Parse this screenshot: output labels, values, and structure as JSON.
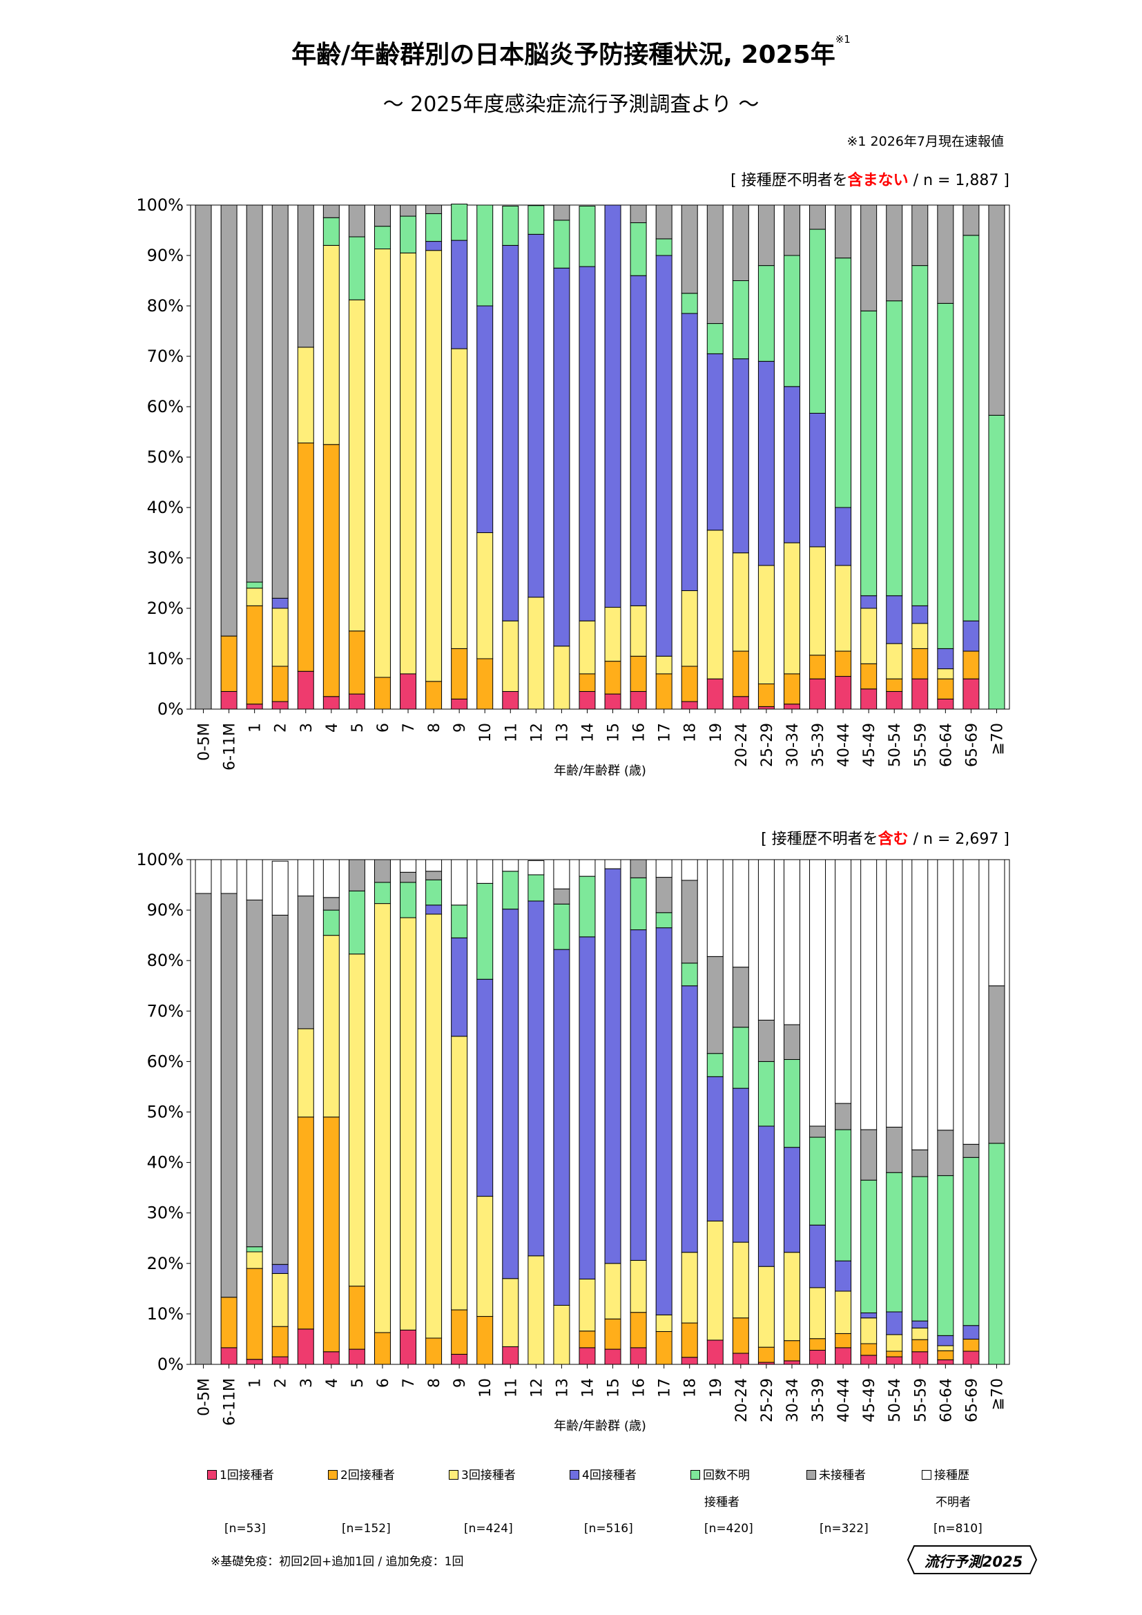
{
  "title": "年齢/年齢群別の日本脳炎予防接種状況, 2025年",
  "title_mark": "※1",
  "subtitle": "～ 2025年度感染症流行予測調査より ～",
  "footnote": "※1  2026年7月現在速報値",
  "x_axis_label": "年齢/年齢群 (歳)",
  "categories": [
    "0-5M",
    "6-11M",
    "1",
    "2",
    "3",
    "4",
    "5",
    "6",
    "7",
    "8",
    "9",
    "10",
    "11",
    "12",
    "13",
    "14",
    "15",
    "16",
    "17",
    "18",
    "19",
    "20-24",
    "25-29",
    "30-34",
    "35-39",
    "40-44",
    "45-49",
    "50-54",
    "55-59",
    "60-64",
    "65-69",
    "≧70"
  ],
  "y_ticks": [
    "0%",
    "10%",
    "20%",
    "30%",
    "40%",
    "50%",
    "60%",
    "70%",
    "80%",
    "90%",
    "100%"
  ],
  "series_colors": {
    "dose1": "#ee3b6e",
    "dose2": "#ffae1a",
    "dose3": "#ffee7a",
    "dose4": "#6f6fe0",
    "unknown_count": "#7ee89a",
    "unvaccinated": "#a6a6a6",
    "history_unknown": "#ffffff"
  },
  "chart_data": [
    {
      "type": "bar",
      "stacked": true,
      "note_prefix": "[ 接種歴不明者を",
      "note_emph": "含まない",
      "note_suffix": "/ n = 1,887 ]",
      "ylim": [
        0,
        100
      ],
      "grid": false,
      "series": [
        {
          "key": "dose1",
          "values": [
            0,
            3.5,
            1,
            1.5,
            7.5,
            2.5,
            3,
            0,
            7,
            0,
            2,
            0,
            3.5,
            0,
            0,
            3.5,
            3,
            3.5,
            0,
            1.5,
            6,
            2.5,
            0.5,
            1,
            6,
            6.5,
            4,
            3.5,
            6,
            2,
            6,
            0
          ]
        },
        {
          "key": "dose2",
          "values": [
            0,
            11,
            19.5,
            7,
            45.3,
            50,
            12.5,
            6.3,
            0,
            5.5,
            10,
            10,
            0,
            0,
            0,
            3.5,
            6.5,
            7,
            7,
            7,
            0,
            9,
            4.5,
            6,
            4.7,
            5,
            5,
            2.5,
            6,
            4,
            5.5,
            0
          ]
        },
        {
          "key": "dose3",
          "values": [
            0,
            0,
            3.5,
            11.5,
            19,
            39.5,
            65.7,
            85,
            83.5,
            85.5,
            59.5,
            25,
            14,
            22.2,
            12.5,
            10.5,
            10.7,
            10,
            3.5,
            15,
            29.5,
            19.5,
            23.5,
            26,
            21.5,
            17,
            11,
            7,
            5,
            2,
            0,
            0
          ]
        },
        {
          "key": "dose4",
          "values": [
            0,
            0,
            0,
            2,
            0,
            0,
            0,
            0,
            0,
            1.8,
            21.5,
            45,
            74.5,
            72,
            75,
            70.3,
            79.8,
            65.5,
            79.5,
            55,
            35,
            38.5,
            40.5,
            31,
            26.5,
            11.5,
            2.5,
            9.5,
            3.5,
            4,
            6,
            0
          ]
        },
        {
          "key": "unknown_count",
          "values": [
            0,
            0,
            1.2,
            0,
            0,
            5.5,
            12.5,
            4.5,
            7.3,
            5.5,
            7.2,
            20,
            7.8,
            5.7,
            9.5,
            12,
            0,
            10.5,
            3.3,
            4,
            6,
            15.5,
            19,
            26,
            36.5,
            49.5,
            56.5,
            58.5,
            67.5,
            68.5,
            76.5,
            58.3
          ]
        },
        {
          "key": "unvaccinated",
          "values": [
            100,
            85.5,
            74.8,
            78,
            28.2,
            2.5,
            6.3,
            4.2,
            2.2,
            1.7,
            0,
            0,
            0,
            0,
            3,
            0,
            0,
            3.5,
            6.7,
            17.5,
            23.5,
            15,
            12,
            10,
            4.8,
            10.5,
            21,
            19,
            12,
            19.5,
            6,
            41.7
          ]
        }
      ]
    },
    {
      "type": "bar",
      "stacked": true,
      "note_prefix": "[ 接種歴不明者を",
      "note_emph": "含む",
      "note_suffix": "/ n = 2,697 ]",
      "ylim": [
        0,
        100
      ],
      "grid": false,
      "series": [
        {
          "key": "dose1",
          "values": [
            0,
            3.3,
            1,
            1.5,
            7,
            2.5,
            3,
            0,
            6.8,
            0,
            2,
            0,
            3.5,
            0,
            0,
            3.3,
            3,
            3.3,
            0,
            1.4,
            4.8,
            2.2,
            0.4,
            0.7,
            2.8,
            3.3,
            1.8,
            1.5,
            2.5,
            0.9,
            2.6,
            0
          ]
        },
        {
          "key": "dose2",
          "values": [
            0,
            10,
            18,
            6,
            42,
            46.5,
            12.5,
            6.3,
            0,
            5.2,
            8.8,
            9.5,
            0,
            0,
            0,
            3.3,
            6,
            7,
            6.5,
            6.8,
            0,
            7,
            3,
            4,
            2.3,
            2.8,
            2.3,
            1.1,
            2.4,
            1.8,
            2.4,
            0
          ]
        },
        {
          "key": "dose3",
          "values": [
            0,
            0,
            3.3,
            10.5,
            17.5,
            36,
            65.8,
            85,
            81.7,
            84,
            54.2,
            23.8,
            13.5,
            21.5,
            11.7,
            10.3,
            11,
            10.3,
            3.3,
            14,
            23.6,
            15,
            16,
            17.5,
            10.1,
            8.4,
            5.1,
            3.3,
            2.3,
            1,
            0,
            0
          ]
        },
        {
          "key": "dose4",
          "values": [
            0,
            0,
            0,
            1.8,
            0,
            0,
            0,
            0,
            0,
            1.8,
            19.5,
            43,
            73.2,
            70.3,
            70.5,
            67.8,
            78.2,
            65.5,
            76.7,
            52.8,
            28.6,
            30.5,
            27.8,
            20.8,
            12.4,
            6,
            1,
            4.5,
            1.4,
            2,
            2.7,
            0
          ]
        },
        {
          "key": "unknown_count",
          "values": [
            0,
            0,
            1,
            0,
            0,
            5,
            12.5,
            4.2,
            7,
            5,
            6.5,
            19,
            7.5,
            5.2,
            9,
            12,
            0,
            10.3,
            3,
            4.5,
            4.6,
            12.1,
            12.8,
            17.4,
            17.4,
            26,
            26.3,
            27.6,
            28.6,
            31.7,
            33.3,
            43.8
          ]
        },
        {
          "key": "unvaccinated",
          "values": [
            93.3,
            80,
            68.7,
            69.2,
            26.3,
            2.5,
            6.2,
            4.5,
            2,
            1.7,
            0,
            0,
            0,
            0,
            3,
            0,
            0,
            3.6,
            7,
            16.4,
            19.2,
            11.9,
            8.2,
            6.9,
            2.2,
            5.2,
            10,
            9,
            5.3,
            9,
            2.6,
            31.2
          ]
        },
        {
          "key": "history_unknown",
          "values": [
            6.7,
            6.7,
            8,
            10.7,
            7.2,
            7.5,
            0,
            0,
            2.5,
            2.3,
            9,
            4.7,
            2.3,
            2.8,
            5.8,
            3.3,
            1.8,
            0,
            3.5,
            4.1,
            19.2,
            21.3,
            31.8,
            32.7,
            52.8,
            48.3,
            53.5,
            53,
            57.5,
            53.6,
            56.4,
            25
          ]
        }
      ]
    }
  ],
  "legend": [
    {
      "key": "dose1",
      "label": "1回接種者",
      "label2": "",
      "n": "[n=53]"
    },
    {
      "key": "dose2",
      "label": "2回接種者",
      "label2": "",
      "n": "[n=152]"
    },
    {
      "key": "dose3",
      "label": "3回接種者",
      "label2": "",
      "n": "[n=424]"
    },
    {
      "key": "dose4",
      "label": "4回接種者",
      "label2": "",
      "n": "[n=516]"
    },
    {
      "key": "unknown_count",
      "label": "回数不明",
      "label2": "接種者",
      "n": "[n=420]"
    },
    {
      "key": "unvaccinated",
      "label": "未接種者",
      "label2": "",
      "n": "[n=322]"
    },
    {
      "key": "history_unknown",
      "label": "接種歴",
      "label2": "不明者",
      "n": "[n=810]"
    }
  ],
  "base_note": "※基礎免疫：初回2回+追加1回 / 追加免疫：1回",
  "logo_text": "流行予測2025",
  "emphasis_color": "#ff0000"
}
